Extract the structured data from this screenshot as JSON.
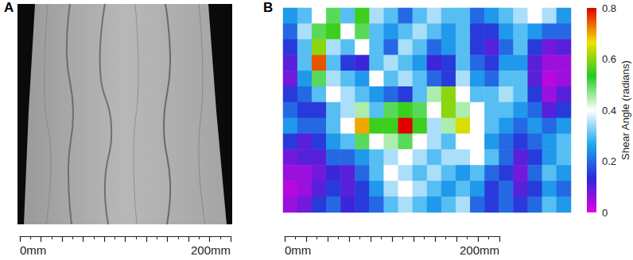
{
  "chart_data": [
    {
      "type": "image",
      "panel_label": "A",
      "xlim": [
        0,
        200
      ],
      "xticks": [
        {
          "value": 0,
          "label": "0mm"
        },
        {
          "value": 200,
          "label": "200mm"
        }
      ],
      "tick_marks": [
        0,
        20,
        40,
        60,
        80,
        100,
        120,
        140,
        160,
        180,
        200
      ]
    },
    {
      "type": "heatmap",
      "panel_label": "B",
      "xlim": [
        0,
        200
      ],
      "xticks": [
        {
          "value": 0,
          "label": "0mm"
        },
        {
          "value": 200,
          "label": "200mm"
        }
      ],
      "tick_marks": [
        0,
        20,
        40,
        60,
        80,
        100,
        120,
        140,
        160,
        180,
        200
      ],
      "cells": [
        [
          0.25,
          0.3,
          0.4,
          0.5,
          0.3,
          0.55,
          0.35,
          0.3,
          0.2,
          0.3,
          0.35,
          0.3,
          0.3,
          0.2,
          0.25,
          0.3,
          0.35,
          0.4,
          0.35,
          0.25
        ],
        [
          0.2,
          0.35,
          0.5,
          0.55,
          0.4,
          0.5,
          0.3,
          0.25,
          0.3,
          0.35,
          0.3,
          0.25,
          0.3,
          0.15,
          0.15,
          0.25,
          0.3,
          0.25,
          0.2,
          0.2
        ],
        [
          0.15,
          0.3,
          0.6,
          0.35,
          0.3,
          0.4,
          0.3,
          0.2,
          0.35,
          0.3,
          0.2,
          0.25,
          0.3,
          0.15,
          0.1,
          0.2,
          0.3,
          0.15,
          0.08,
          0.1
        ],
        [
          0.1,
          0.3,
          0.75,
          0.3,
          0.15,
          0.12,
          0.3,
          0.35,
          0.3,
          0.25,
          0.12,
          0.15,
          0.3,
          0.2,
          0.15,
          0.25,
          0.25,
          0.1,
          0.05,
          0.05
        ],
        [
          0.08,
          0.25,
          0.5,
          0.35,
          0.3,
          0.25,
          0.4,
          0.3,
          0.35,
          0.3,
          0.2,
          0.15,
          0.35,
          0.25,
          0.2,
          0.3,
          0.3,
          0.1,
          0.03,
          0.05
        ],
        [
          0.15,
          0.2,
          0.3,
          0.4,
          0.35,
          0.3,
          0.25,
          0.2,
          0.15,
          0.3,
          0.45,
          0.6,
          0.4,
          0.3,
          0.3,
          0.35,
          0.3,
          0.15,
          0.05,
          0.1
        ],
        [
          0.2,
          0.15,
          0.15,
          0.3,
          0.35,
          0.45,
          0.3,
          0.5,
          0.55,
          0.5,
          0.4,
          0.6,
          0.45,
          0.4,
          0.3,
          0.3,
          0.25,
          0.2,
          0.1,
          0.15
        ],
        [
          0.25,
          0.2,
          0.2,
          0.3,
          0.4,
          0.7,
          0.55,
          0.55,
          0.8,
          0.55,
          0.35,
          0.45,
          0.65,
          0.4,
          0.3,
          0.25,
          0.2,
          0.25,
          0.2,
          0.25
        ],
        [
          0.15,
          0.1,
          0.15,
          0.25,
          0.3,
          0.5,
          0.4,
          0.45,
          0.5,
          0.4,
          0.35,
          0.3,
          0.4,
          0.4,
          0.25,
          0.2,
          0.15,
          0.2,
          0.25,
          0.3
        ],
        [
          0.08,
          0.1,
          0.1,
          0.2,
          0.2,
          0.25,
          0.3,
          0.35,
          0.4,
          0.35,
          0.3,
          0.35,
          0.35,
          0.4,
          0.3,
          0.2,
          0.1,
          0.15,
          0.25,
          0.3
        ],
        [
          0.05,
          0.05,
          0.08,
          0.12,
          0.1,
          0.2,
          0.3,
          0.4,
          0.35,
          0.3,
          0.35,
          0.3,
          0.25,
          0.3,
          0.2,
          0.15,
          0.08,
          0.2,
          0.3,
          0.25
        ],
        [
          0.03,
          0.05,
          0.1,
          0.15,
          0.1,
          0.15,
          0.25,
          0.35,
          0.4,
          0.35,
          0.3,
          0.25,
          0.3,
          0.25,
          0.15,
          0.2,
          0.1,
          0.15,
          0.25,
          0.2
        ],
        [
          0.05,
          0.08,
          0.15,
          0.2,
          0.12,
          0.15,
          0.2,
          0.3,
          0.35,
          0.3,
          0.25,
          0.3,
          0.35,
          0.2,
          0.15,
          0.2,
          0.15,
          0.2,
          0.3,
          0.25
        ]
      ],
      "colorbar": {
        "label": "Shear Angle (radians)",
        "range": [
          0,
          0.8
        ],
        "ticks": [
          0,
          0.2,
          0.4,
          0.6,
          0.8
        ]
      }
    }
  ]
}
